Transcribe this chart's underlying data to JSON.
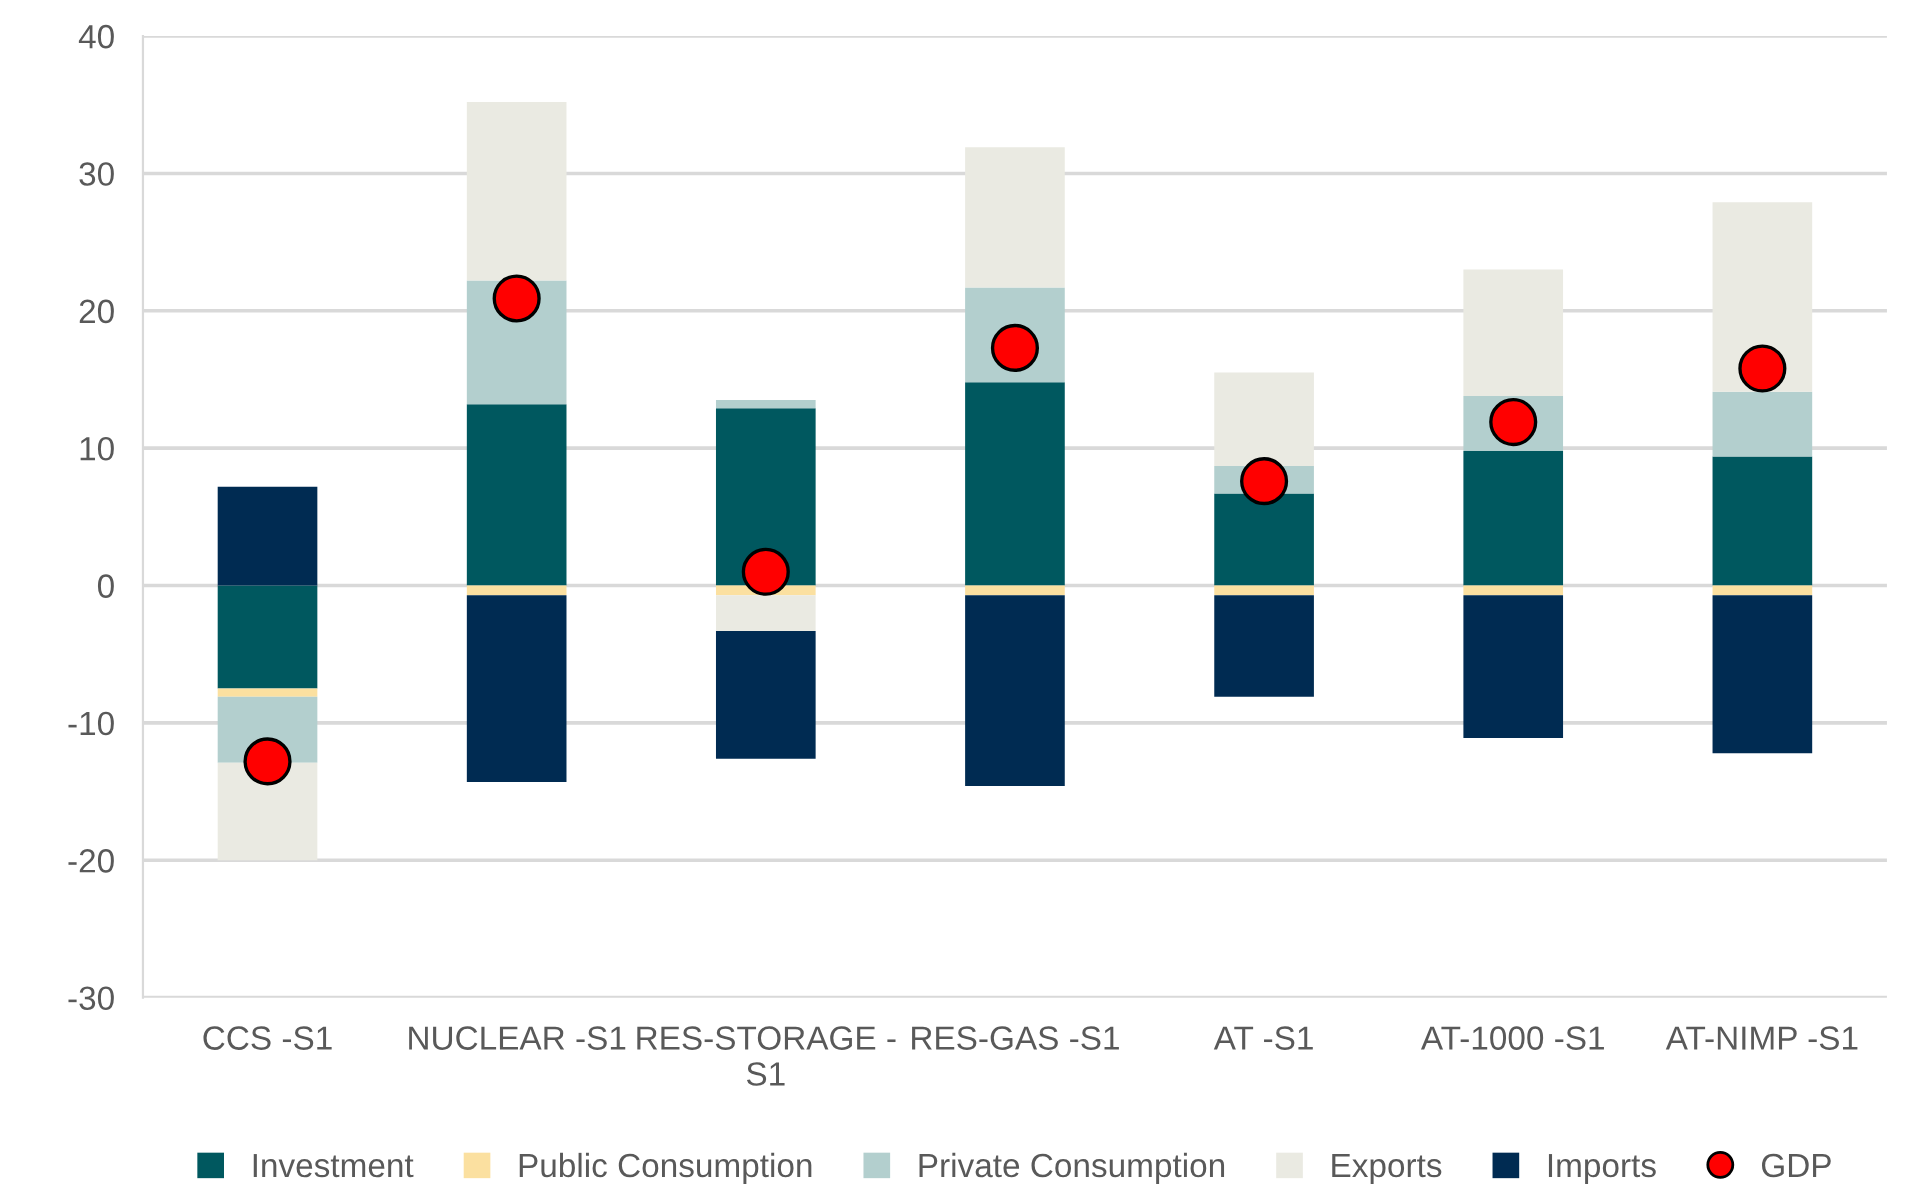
{
  "chart_data": {
    "type": "bar",
    "stacked": true,
    "categories": [
      "CCS -S1",
      "NUCLEAR -S1",
      "RES-STORAGE -\nS1",
      "RES-GAS -S1",
      "AT -S1",
      "AT-1000 -S1",
      "AT-NIMP -S1"
    ],
    "series": [
      {
        "name": "Investment",
        "color": "#00585f",
        "values": [
          -7.5,
          13.2,
          12.9,
          14.8,
          6.7,
          9.8,
          9.4
        ]
      },
      {
        "name": "Public Consumption",
        "color": "#fbe0a0",
        "values": [
          -0.6,
          -0.7,
          -0.7,
          -0.7,
          -0.7,
          -0.7,
          -0.7
        ]
      },
      {
        "name": "Private Consumption",
        "color": "#b3cfce",
        "values": [
          -4.8,
          9.0,
          0.6,
          6.9,
          2.0,
          4.0,
          4.7
        ]
      },
      {
        "name": "Exports",
        "color": "#eaeae2",
        "values": [
          -7.1,
          13.0,
          -2.6,
          10.2,
          6.8,
          9.2,
          13.8
        ]
      },
      {
        "name": "Imports",
        "color": "#002b52",
        "values": [
          7.2,
          -13.6,
          -9.3,
          -13.9,
          -7.4,
          -10.4,
          -11.5
        ]
      },
      {
        "name": "GDP",
        "type": "scatter",
        "color": "#ff0000",
        "marker": "circle",
        "values": [
          -12.8,
          20.9,
          1.0,
          17.3,
          7.6,
          11.9,
          15.8
        ]
      }
    ],
    "ylim": [
      -30,
      40
    ],
    "yticks": [
      -30,
      -20,
      -10,
      0,
      10,
      20,
      30,
      40
    ],
    "grid": "y",
    "legend": "bottom"
  }
}
